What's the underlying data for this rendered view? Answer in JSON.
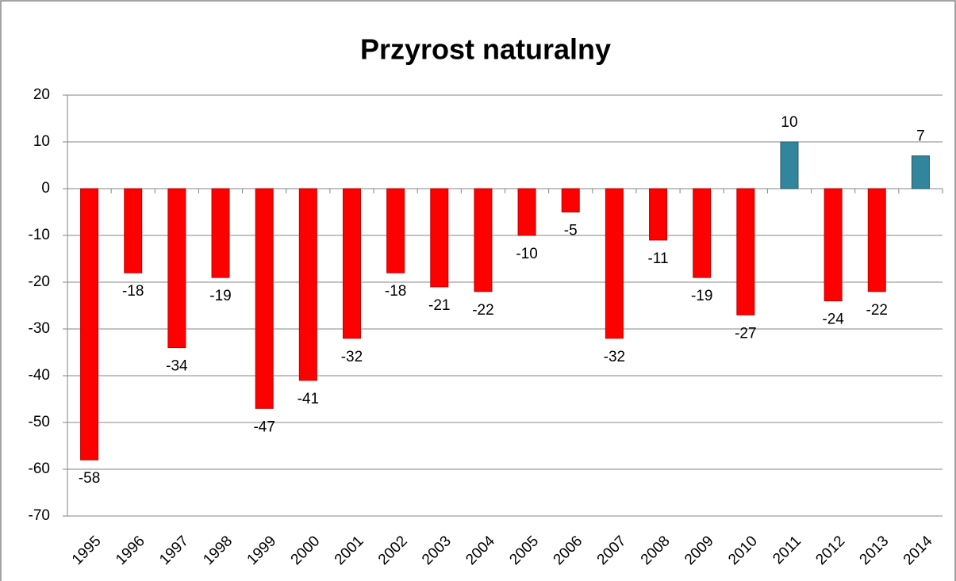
{
  "chart_data": {
    "type": "bar",
    "title": "Przyrost naturalny",
    "categories": [
      "1995",
      "1996",
      "1997",
      "1998",
      "1999",
      "2000",
      "2001",
      "2002",
      "2003",
      "2004",
      "2005",
      "2006",
      "2007",
      "2008",
      "2009",
      "2010",
      "2011",
      "2012",
      "2013",
      "2014"
    ],
    "values": [
      -58,
      -18,
      -34,
      -19,
      -47,
      -41,
      -32,
      -18,
      -21,
      -22,
      -10,
      -5,
      -32,
      -11,
      -19,
      -27,
      10,
      -24,
      -22,
      7
    ],
    "colors": [
      "#ff0000",
      "#ff0000",
      "#ff0000",
      "#ff0000",
      "#ff0000",
      "#ff0000",
      "#ff0000",
      "#ff0000",
      "#ff0000",
      "#ff0000",
      "#ff0000",
      "#ff0000",
      "#ff0000",
      "#ff0000",
      "#ff0000",
      "#ff0000",
      "#31859c",
      "#ff0000",
      "#ff0000",
      "#31859c"
    ],
    "ylim": [
      -70,
      20
    ],
    "yticks": [
      -70,
      -60,
      -50,
      -40,
      -30,
      -20,
      -10,
      0,
      10,
      20
    ],
    "grid": true
  }
}
